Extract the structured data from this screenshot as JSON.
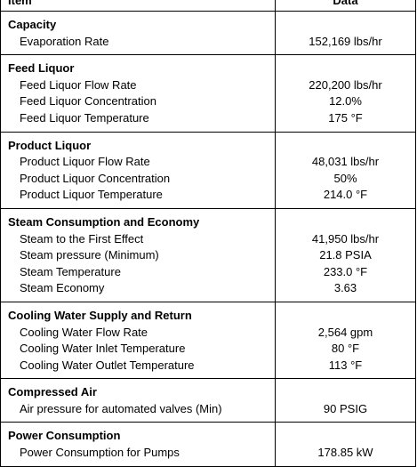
{
  "header": {
    "item": "Item",
    "data": "Data"
  },
  "sections": [
    {
      "title": "Capacity",
      "rows": [
        {
          "label": "Evaporation Rate",
          "value": "152,169 lbs/hr"
        }
      ]
    },
    {
      "title": "Feed Liquor",
      "rows": [
        {
          "label": "Feed Liquor Flow Rate",
          "value": "220,200 lbs/hr"
        },
        {
          "label": "Feed Liquor Concentration",
          "value": "12.0%"
        },
        {
          "label": "Feed Liquor Temperature",
          "value": "175 °F"
        }
      ]
    },
    {
      "title": "Product Liquor",
      "rows": [
        {
          "label": "Product Liquor Flow Rate",
          "value": "48,031 lbs/hr"
        },
        {
          "label": "Product Liquor Concentration",
          "value": "50%"
        },
        {
          "label": "Product Liquor Temperature",
          "value": "214.0 °F"
        }
      ]
    },
    {
      "title": "Steam Consumption and Economy",
      "rows": [
        {
          "label": "Steam to the First Effect",
          "value": "41,950 lbs/hr"
        },
        {
          "label": "Steam pressure (Minimum)",
          "value": "21.8 PSIA"
        },
        {
          "label": "Steam Temperature",
          "value": "233.0 °F"
        },
        {
          "label": "Steam Economy",
          "value": "3.63"
        }
      ]
    },
    {
      "title": "Cooling Water Supply and Return",
      "rows": [
        {
          "label": "Cooling Water Flow Rate",
          "value": "2,564 gpm"
        },
        {
          "label": "Cooling Water Inlet Temperature",
          "value": "80 °F"
        },
        {
          "label": "Cooling Water Outlet Temperature",
          "value": "113 °F"
        }
      ]
    },
    {
      "title": "Compressed Air",
      "rows": [
        {
          "label": "Air pressure for automated valves (Min)",
          "value": "90 PSIG"
        }
      ]
    },
    {
      "title": "Power Consumption",
      "rows": [
        {
          "label": "Power Consumption for Pumps",
          "value": "178.85 kW"
        }
      ]
    }
  ]
}
